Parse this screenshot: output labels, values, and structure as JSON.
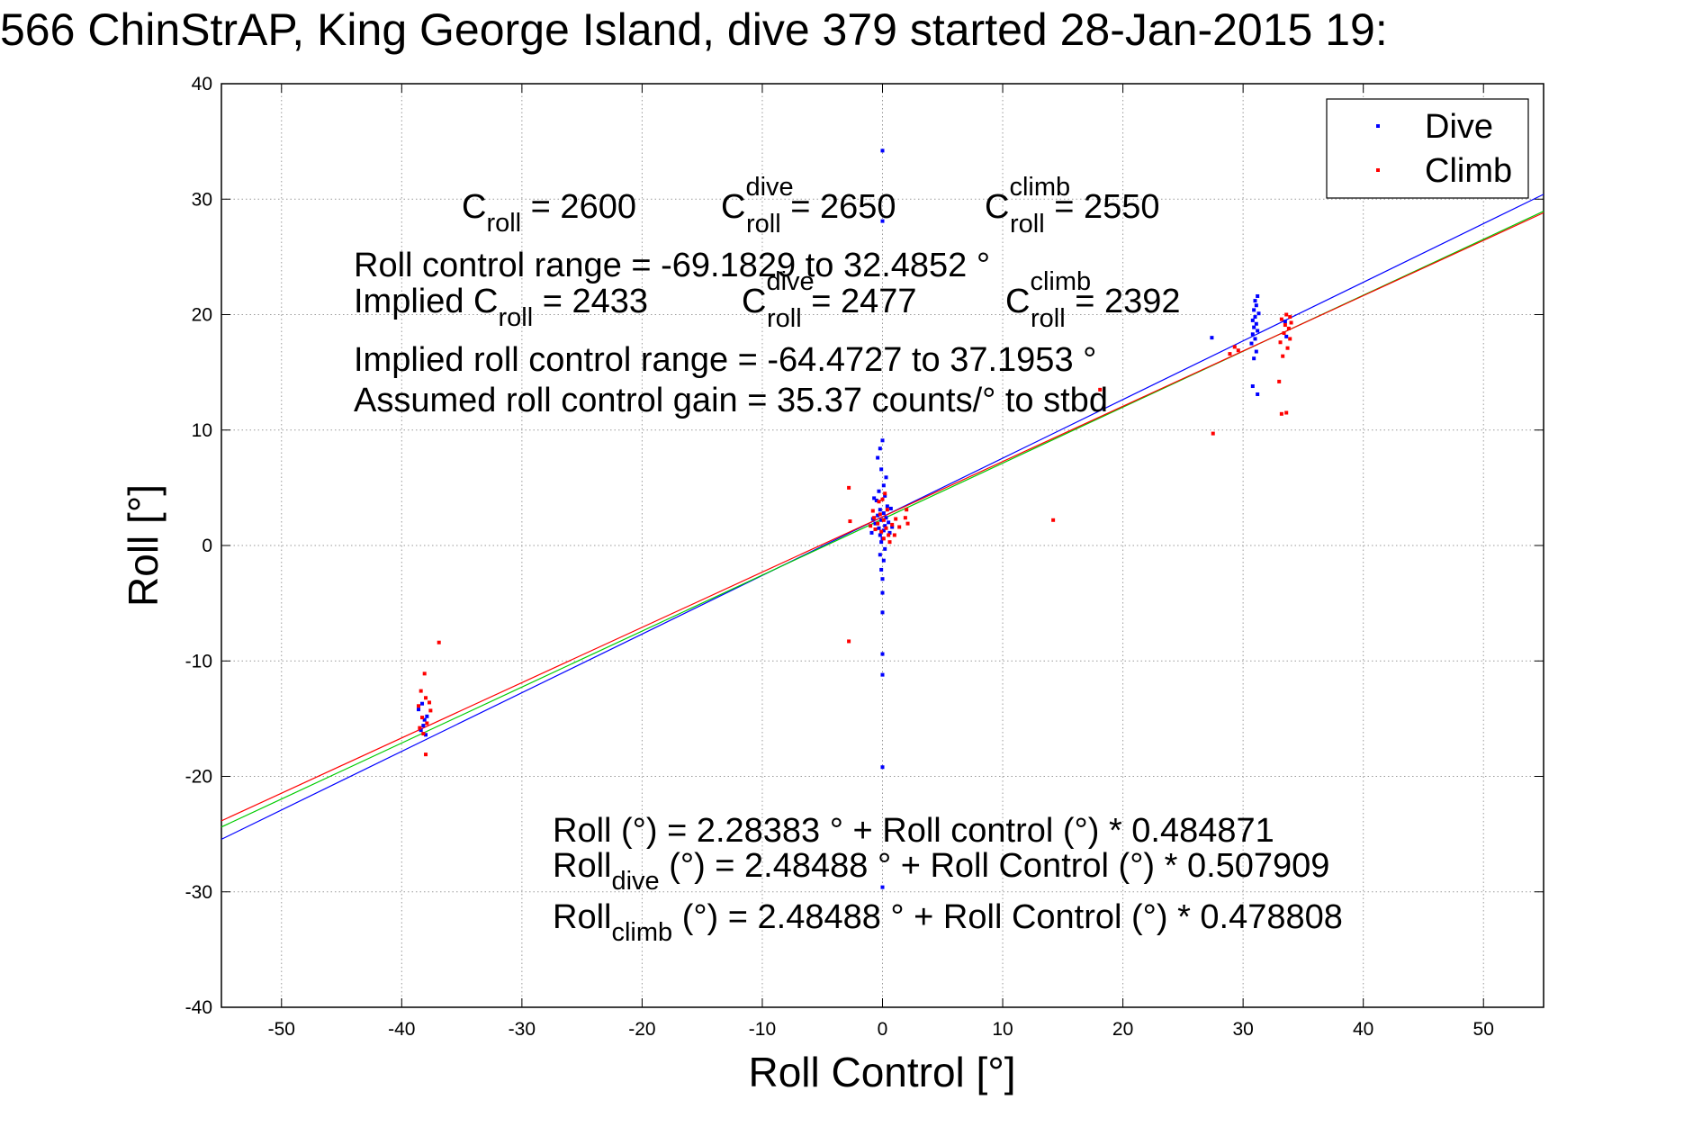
{
  "chart_data": {
    "type": "scatter",
    "title": "566 ChinStrAP, King George Island, dive 379 started 28-Jan-2015 19:",
    "xlabel": "Roll Control [°]",
    "ylabel": "Roll [°]",
    "xlim": [
      -55,
      55
    ],
    "ylim": [
      -40,
      40
    ],
    "x_ticks": [
      -50,
      -40,
      -30,
      -20,
      -10,
      0,
      10,
      20,
      30,
      40,
      50
    ],
    "y_ticks": [
      -40,
      -30,
      -20,
      -10,
      0,
      10,
      20,
      30,
      40
    ],
    "x_tick_labels": [
      "-50",
      "-40",
      "-30",
      "-20",
      "-10",
      "0",
      "10",
      "20",
      "30",
      "40",
      "50"
    ],
    "y_tick_labels": [
      "-40",
      "-30",
      "-20",
      "-10",
      "0",
      "10",
      "20",
      "30",
      "40"
    ],
    "grid": true,
    "legend_position": "top-right",
    "series": [
      {
        "name": "Dive",
        "color": "#0000ff",
        "points": [
          [
            0,
            34.2
          ],
          [
            0,
            28.1
          ],
          [
            0,
            9.1
          ],
          [
            -0.2,
            8.4
          ],
          [
            -0.4,
            7.6
          ],
          [
            -0.1,
            6.6
          ],
          [
            0.3,
            5.9
          ],
          [
            0.1,
            5.2
          ],
          [
            -0.3,
            4.7
          ],
          [
            0.2,
            4.3
          ],
          [
            -0.5,
            3.9
          ],
          [
            0.4,
            3.4
          ],
          [
            -0.2,
            3.1
          ],
          [
            0.1,
            2.8
          ],
          [
            -0.4,
            2.6
          ],
          [
            0.3,
            2.4
          ],
          [
            -0.1,
            2.2
          ],
          [
            0.5,
            2.0
          ],
          [
            -0.6,
            1.9
          ],
          [
            0.2,
            1.7
          ],
          [
            -0.3,
            1.5
          ],
          [
            0.1,
            1.3
          ],
          [
            0.6,
            1.1
          ],
          [
            -0.2,
            0.9
          ],
          [
            0.0,
            0.6
          ],
          [
            -0.1,
            0.3
          ],
          [
            0.2,
            -0.3
          ],
          [
            -0.2,
            -0.8
          ],
          [
            0.1,
            -1.3
          ],
          [
            -0.1,
            -2.1
          ],
          [
            0.0,
            -2.9
          ],
          [
            0.0,
            -4.1
          ],
          [
            0.0,
            -5.8
          ],
          [
            0.0,
            -9.4
          ],
          [
            0.0,
            -11.2
          ],
          [
            0.0,
            -19.2
          ],
          [
            0.0,
            -29.6
          ],
          [
            -0.8,
            2.3
          ],
          [
            0.8,
            1.6
          ],
          [
            -0.9,
            1.1
          ],
          [
            0.7,
            3.2
          ],
          [
            -0.7,
            4.1
          ],
          [
            -38.6,
            -14.2
          ],
          [
            -38.3,
            -13.7
          ],
          [
            -38.1,
            -15.1
          ],
          [
            -38.4,
            -16.0
          ],
          [
            -37.9,
            -14.8
          ],
          [
            -38.2,
            -15.6
          ],
          [
            -38.0,
            -16.4
          ],
          [
            27.4,
            18.0
          ],
          [
            30.8,
            13.8
          ],
          [
            31.2,
            13.1
          ],
          [
            30.9,
            16.2
          ],
          [
            31.1,
            16.8
          ],
          [
            30.7,
            17.5
          ],
          [
            31.0,
            17.9
          ],
          [
            30.8,
            18.3
          ],
          [
            31.2,
            18.6
          ],
          [
            30.9,
            18.9
          ],
          [
            31.1,
            19.2
          ],
          [
            30.8,
            19.5
          ],
          [
            31.0,
            19.8
          ],
          [
            31.3,
            20.1
          ],
          [
            30.9,
            20.4
          ],
          [
            31.1,
            20.8
          ],
          [
            31.0,
            21.2
          ],
          [
            31.2,
            21.6
          ],
          [
            33.5,
            19.4
          ],
          [
            33.6,
            18.1
          ]
        ]
      },
      {
        "name": "Climb",
        "color": "#ff0000",
        "points": [
          [
            -2.8,
            5.0
          ],
          [
            -2.8,
            -8.3
          ],
          [
            -2.7,
            2.1
          ],
          [
            -1.0,
            1.7
          ],
          [
            -0.7,
            2.4
          ],
          [
            -0.3,
            3.8
          ],
          [
            0.2,
            4.5
          ],
          [
            0.4,
            3.1
          ],
          [
            -0.2,
            2.7
          ],
          [
            0.1,
            2.2
          ],
          [
            -0.4,
            1.9
          ],
          [
            0.3,
            1.5
          ],
          [
            -0.1,
            1.2
          ],
          [
            0.5,
            0.9
          ],
          [
            0.8,
            1.8
          ],
          [
            1.1,
            2.3
          ],
          [
            1.4,
            1.6
          ],
          [
            1.9,
            2.4
          ],
          [
            2.0,
            3.1
          ],
          [
            2.1,
            1.9
          ],
          [
            1.0,
            0.9
          ],
          [
            0.6,
            0.3
          ],
          [
            -0.6,
            1.4
          ],
          [
            -0.8,
            3.0
          ],
          [
            0.0,
            4.0
          ],
          [
            0.1,
            0.6
          ],
          [
            14.2,
            2.2
          ],
          [
            18.1,
            13.5
          ],
          [
            -36.9,
            -8.4
          ],
          [
            -38.1,
            -11.1
          ],
          [
            -38.4,
            -12.6
          ],
          [
            -38.0,
            -13.2
          ],
          [
            -38.6,
            -13.9
          ],
          [
            -37.6,
            -14.3
          ],
          [
            -38.3,
            -14.9
          ],
          [
            -37.9,
            -15.4
          ],
          [
            -38.5,
            -15.8
          ],
          [
            -38.2,
            -16.3
          ],
          [
            -37.7,
            -13.6
          ],
          [
            -38.0,
            -18.1
          ],
          [
            27.5,
            9.7
          ],
          [
            28.9,
            16.6
          ],
          [
            29.3,
            17.2
          ],
          [
            29.6,
            16.9
          ],
          [
            33.0,
            14.2
          ],
          [
            33.2,
            11.4
          ],
          [
            33.6,
            11.5
          ],
          [
            33.2,
            19.6
          ],
          [
            33.5,
            19.1
          ],
          [
            33.8,
            18.8
          ],
          [
            33.4,
            18.4
          ],
          [
            33.9,
            19.8
          ],
          [
            33.6,
            20.0
          ],
          [
            33.1,
            17.6
          ],
          [
            33.7,
            17.1
          ],
          [
            33.3,
            16.4
          ],
          [
            33.9,
            17.9
          ],
          [
            34.0,
            19.3
          ]
        ]
      }
    ],
    "fit_lines": [
      {
        "name": "Dive fit",
        "color": "#0000ff",
        "intercept": 2.48488,
        "slope": 0.507909
      },
      {
        "name": "Overall fit",
        "color": "#00cc00",
        "intercept": 2.28383,
        "slope": 0.484871
      },
      {
        "name": "Climb fit",
        "color": "#ff0000",
        "intercept": 2.48488,
        "slope": 0.478808
      }
    ],
    "annotations": {
      "c_roll": {
        "base": "C",
        "sub": "roll",
        "value": " = 2600"
      },
      "c_roll_dive": {
        "base": "C",
        "sup": "dive",
        "sub": "roll",
        "value": " = 2650"
      },
      "c_roll_climb": {
        "base": "C",
        "sup": "climb",
        "sub": "roll",
        "value": " = 2550"
      },
      "range_line": "Roll control range = -69.1829 to 32.4852 °",
      "implied_prefix": "Implied C",
      "implied_sub": "roll",
      "implied_value": " = 2433",
      "implied_dive": {
        "base": "C",
        "sup": "dive",
        "sub": "roll",
        "value": " = 2477"
      },
      "implied_climb": {
        "base": "C",
        "sup": "climb",
        "sub": "roll",
        "value": " = 2392"
      },
      "implied_range_line": "Implied roll control range = -64.4727 to 37.1953 °",
      "gain_line": "Assumed roll control gain = 35.37 counts/° to stbd",
      "eq_all": "Roll (°) = 2.28383 ° + Roll control (°) * 0.484871",
      "eq_dive_base": "Roll",
      "eq_dive_sub": "dive",
      "eq_dive_rest": " (°) = 2.48488 ° + Roll Control (°) * 0.507909",
      "eq_climb_base": "Roll",
      "eq_climb_sub": "climb",
      "eq_climb_rest": " (°) = 2.48488 ° + Roll Control (°) * 0.478808"
    }
  }
}
